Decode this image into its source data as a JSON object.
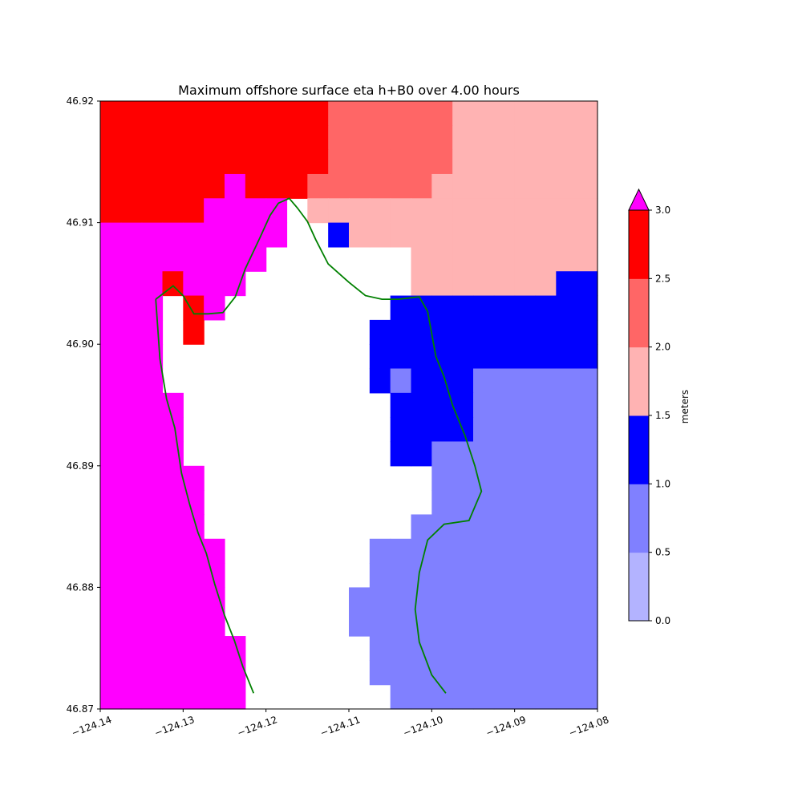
{
  "chart_data": {
    "type": "heatmap",
    "title": "Maximum offshore surface eta h+B0 over 4.00 hours",
    "x_ticks": [
      "−124.14",
      "−124.13",
      "−124.12",
      "−124.11",
      "−124.10",
      "−124.09",
      "−124.08"
    ],
    "x_tick_values": [
      -124.14,
      -124.13,
      -124.12,
      -124.11,
      -124.1,
      -124.09,
      -124.08
    ],
    "y_ticks": [
      "46.87",
      "46.88",
      "46.89",
      "46.90",
      "46.91",
      "46.92"
    ],
    "y_tick_values": [
      46.87,
      46.88,
      46.89,
      46.9,
      46.91,
      46.92
    ],
    "xlim": [
      -124.14,
      -124.08
    ],
    "ylim": [
      46.87,
      46.92
    ],
    "grid": false,
    "colorbar": {
      "label": "meters",
      "ticks": [
        "0.0",
        "0.5",
        "1.0",
        "1.5",
        "2.0",
        "2.5",
        "3.0"
      ],
      "levels": [
        0.0,
        0.5,
        1.0,
        1.5,
        2.0,
        2.5,
        3.0
      ],
      "colors": [
        "#b3b3ff",
        "#8080ff",
        "#0000ff",
        "#ffb3b3",
        "#ff6666",
        "#ff0000"
      ],
      "extend_max_color": "#ff00ff"
    },
    "cell_size_deg": [
      0.0025,
      0.0025
    ],
    "legend_codes": {
      "1": "#8080ff",
      "2": "#0000ff",
      "3": "#ffb3b3",
      "4": "#ff6666",
      "5": "#ff0000",
      "6": "#ff00ff",
      ".": "none"
    },
    "grid_rows_top_to_bottom": [
      "RRRRRRRRRRRQQQQQQPPPPPPP",
      "RRRRRRRRRRRQQQQQQPPPPPPP",
      "RRRRRRRRRRRQQQQQQPPPPPPP",
      "RRRRRRMRRRQQQQQQPPPPPPPP",
      "RRRRRMMMM.PPPPPPPPPPPPPP",
      "MMMMMMMMM..BPPPPPPPPPPPP",
      "MMMMMMMM.......PPPPPPPPPPP",
      "MMMRMMM........PPPPPPPBBPB",
      "MMM.RM........BBBBBBBBBB",
      "MMM.R........BBBBBBBBBBB",
      "MMM..........BBBBBBBBBBB",
      "MMM..........BLBBBLLLLLL",
      "MMMM..........BBBBLLLLLL",
      "MMMM..........BBBBLLLLLL",
      "MMMM..........BBLLLLLLLL",
      "MMMMM...........LLLLLLLL",
      "MMMMM...........LLLLLLLL",
      "MMMMM..........LLLLLLLLL",
      "MMMMMM.......LLLLLLLLLLL",
      "MMMMMM.......LLLLLLLLLLL",
      "MMMMMM......LLLLLLLLLLLL",
      "MMMMMM......LLLLLLLLLLLL",
      "MMMMMMM......LLLLLLLLLLL",
      "MMMMMMM......LLLLLLLLLLL",
      "MMMMMMM.......LLLLLLLLLL"
    ],
    "grid_code_colors": {
      "R": "#ff0000",
      "Q": "#ff6666",
      "P": "#ffb3b3",
      "B": "#0000ff",
      "L": "#8080ff",
      "M": "#ff00ff",
      ".": "none"
    },
    "shoreline_west": [
      [
        -124.1333,
        46.9037
      ],
      [
        -124.1312,
        46.9048
      ],
      [
        -124.13,
        46.904
      ],
      [
        -124.1287,
        46.9025
      ],
      [
        -124.127,
        46.9025
      ],
      [
        -124.1252,
        46.9026
      ],
      [
        -124.1237,
        46.9039
      ],
      [
        -124.1225,
        46.9062
      ],
      [
        -124.1207,
        46.9088
      ],
      [
        -124.1195,
        46.9106
      ],
      [
        -124.1185,
        46.9116
      ],
      [
        -124.1172,
        46.912
      ],
      [
        -124.1162,
        46.9112
      ],
      [
        -124.115,
        46.9101
      ],
      [
        -124.114,
        46.9086
      ],
      [
        -124.1125,
        46.9066
      ],
      [
        -124.11,
        46.9051
      ],
      [
        -124.108,
        46.904
      ],
      [
        -124.106,
        46.9037
      ],
      [
        -124.104,
        46.9037
      ]
    ],
    "shoreline_west_coast": [
      [
        -124.1333,
        46.9037
      ],
      [
        -124.1328,
        46.8988
      ],
      [
        -124.132,
        46.8955
      ],
      [
        -124.131,
        46.8931
      ],
      [
        -124.1302,
        46.8894
      ],
      [
        -124.1292,
        46.8868
      ],
      [
        -124.1282,
        46.8845
      ],
      [
        -124.1272,
        46.8828
      ],
      [
        -124.1262,
        46.8803
      ],
      [
        -124.125,
        46.8777
      ],
      [
        -124.1238,
        46.8756
      ],
      [
        -124.1228,
        46.8735
      ],
      [
        -124.1215,
        46.8713
      ]
    ],
    "shoreline_east": [
      [
        -124.104,
        46.9037
      ],
      [
        -124.1015,
        46.9039
      ],
      [
        -124.1005,
        46.9027
      ],
      [
        -124.0995,
        46.899
      ],
      [
        -124.0985,
        46.8973
      ],
      [
        -124.0975,
        46.895
      ],
      [
        -124.096,
        46.8925
      ],
      [
        -124.0948,
        46.89
      ],
      [
        -124.094,
        46.8879
      ],
      [
        -124.0955,
        46.8855
      ],
      [
        -124.0985,
        46.8852
      ],
      [
        -124.1005,
        46.8839
      ],
      [
        -124.1015,
        46.8812
      ],
      [
        -124.102,
        46.8782
      ],
      [
        -124.1015,
        46.8755
      ],
      [
        -124.1,
        46.8728
      ],
      [
        -124.0983,
        46.8713
      ]
    ],
    "shoreline_color": "#008000"
  }
}
